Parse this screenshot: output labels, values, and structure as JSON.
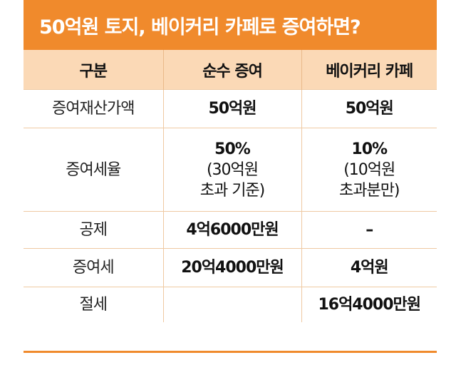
{
  "title": "50억원 토지, 베이커리 카페로 증여하면?",
  "table": {
    "headers": [
      "구분",
      "순수 증여",
      "베이커리 카페"
    ],
    "rows": [
      {
        "label": "증여재산가액",
        "pure": [
          "50억원"
        ],
        "bakery": [
          "50억원"
        ]
      },
      {
        "label": "증여세율",
        "pure": [
          "50%",
          "(30억원",
          "초과 기준)"
        ],
        "bakery": [
          "10%",
          "(10억원",
          "초과분만)"
        ]
      },
      {
        "label": "공제",
        "pure": [
          "4억6000만원"
        ],
        "bakery": [
          "–"
        ]
      },
      {
        "label": "증여세",
        "pure": [
          "20억4000만원"
        ],
        "bakery": [
          "4억원"
        ]
      },
      {
        "label": "절세",
        "pure": [
          ""
        ],
        "bakery": [
          "16억4000만원"
        ]
      }
    ]
  },
  "colors": {
    "accent": "#f08a2c",
    "header_bg": "#fbd9b6",
    "grid": "#efc9a2"
  }
}
